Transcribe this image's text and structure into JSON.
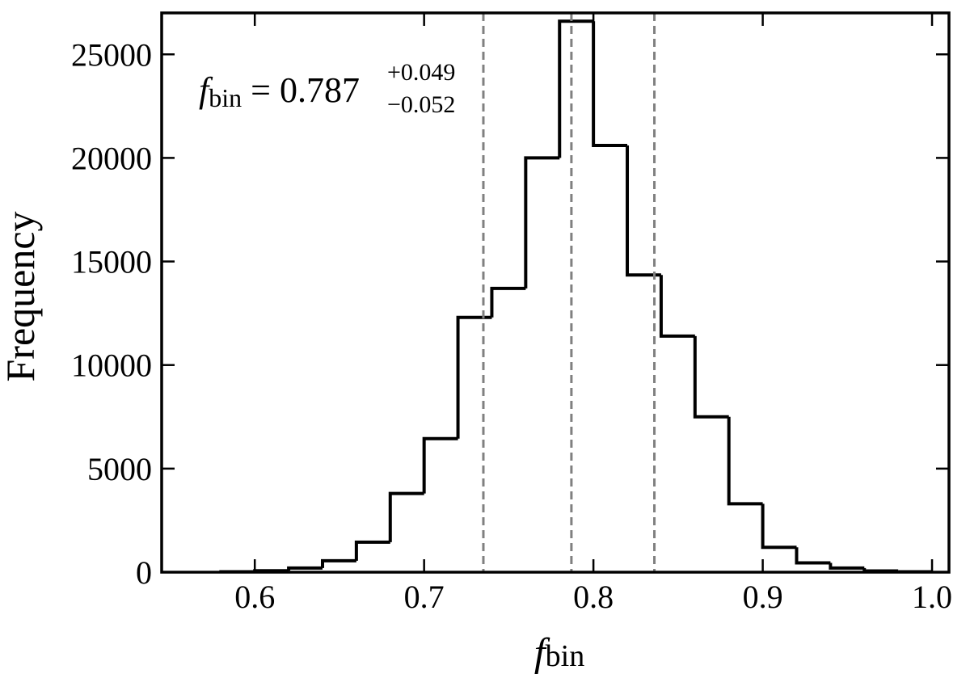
{
  "chart_data": {
    "type": "histogram",
    "xlabel_main": "f",
    "xlabel_sub": "bin",
    "ylabel": "Frequency",
    "xlim": [
      0.545,
      1.01
    ],
    "ylim": [
      0,
      27000
    ],
    "xticks": [
      0.6,
      0.7,
      0.8,
      0.9,
      1.0
    ],
    "xtick_labels": [
      "0.6",
      "0.7",
      "0.8",
      "0.9",
      "1.0"
    ],
    "yticks": [
      0,
      5000,
      10000,
      15000,
      20000,
      25000
    ],
    "ytick_labels": [
      "0",
      "5000",
      "10000",
      "15000",
      "20000",
      "25000"
    ],
    "bin_edges": [
      0.58,
      0.6,
      0.62,
      0.64,
      0.66,
      0.68,
      0.7,
      0.72,
      0.74,
      0.76,
      0.78,
      0.8,
      0.82,
      0.84,
      0.86,
      0.88,
      0.9,
      0.92,
      0.94,
      0.96,
      0.98,
      1.0
    ],
    "counts": [
      20,
      70,
      200,
      550,
      1450,
      3800,
      6450,
      12300,
      13700,
      20000,
      26600,
      20600,
      14350,
      11400,
      7500,
      3300,
      1200,
      450,
      200,
      60,
      20
    ],
    "vlines": [
      0.735,
      0.787,
      0.836
    ],
    "grid": false,
    "annotation": {
      "symbol": "f",
      "sub": "bin",
      "equals": " = 0.787",
      "upper": "+0.049",
      "lower": "−0.052"
    }
  },
  "colors": {
    "histogram": "#000000",
    "vline": "#808080",
    "axes": "#000000"
  }
}
